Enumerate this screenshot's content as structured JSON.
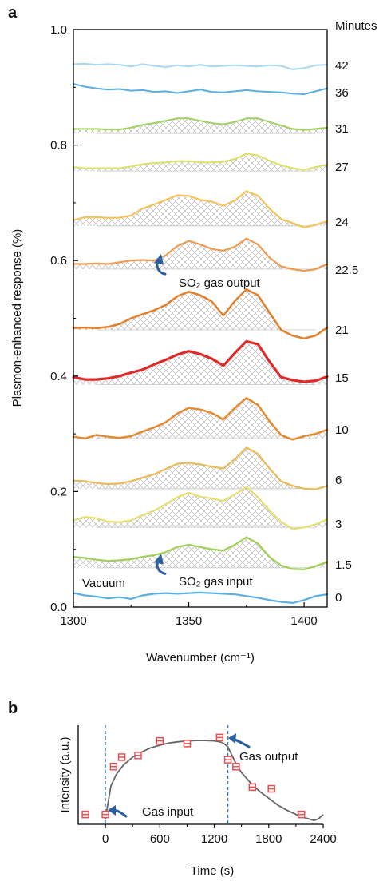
{
  "panel_labels": {
    "a": "a",
    "b": "b"
  },
  "chart_data": [
    {
      "type": "line",
      "panel": "a",
      "xlabel": "Wavenumber (cm⁻¹)",
      "ylabel": "Plasmon-enhanced response (%)",
      "xlim": [
        1300,
        1410
      ],
      "ylim": [
        0.0,
        1.0
      ],
      "xticks": [
        "1300",
        "1350",
        "1400"
      ],
      "yticks": [
        "0.0",
        "0.2",
        "0.4",
        "0.6",
        "0.8",
        "1.0"
      ],
      "legend_title": "Minutes",
      "x": [
        1300,
        1305,
        1310,
        1315,
        1320,
        1325,
        1330,
        1335,
        1340,
        1345,
        1350,
        1355,
        1360,
        1365,
        1370,
        1375,
        1380,
        1385,
        1390,
        1395,
        1400,
        1405,
        1410
      ],
      "series": [
        {
          "name": "42",
          "color": "#aad8ef",
          "width": 2,
          "hatch": false,
          "baseline": 0.94,
          "values": [
            0.94,
            0.941,
            0.939,
            0.94,
            0.939,
            0.936,
            0.94,
            0.937,
            0.935,
            0.938,
            0.936,
            0.939,
            0.936,
            0.937,
            0.938,
            0.937,
            0.936,
            0.938,
            0.937,
            0.931,
            0.933,
            0.938,
            0.939
          ]
        },
        {
          "name": "36",
          "color": "#5aaee2",
          "width": 2,
          "hatch": false,
          "baseline": 0.9,
          "values": [
            0.906,
            0.901,
            0.898,
            0.896,
            0.897,
            0.894,
            0.895,
            0.892,
            0.893,
            0.89,
            0.893,
            0.896,
            0.892,
            0.891,
            0.893,
            0.895,
            0.893,
            0.892,
            0.891,
            0.889,
            0.888,
            0.893,
            0.898
          ]
        },
        {
          "name": "31",
          "color": "#9fd060",
          "width": 2,
          "hatch": true,
          "baseline": 0.82,
          "values": [
            0.828,
            0.828,
            0.828,
            0.827,
            0.827,
            0.83,
            0.835,
            0.838,
            0.842,
            0.846,
            0.846,
            0.842,
            0.838,
            0.836,
            0.84,
            0.846,
            0.846,
            0.84,
            0.834,
            0.828,
            0.826,
            0.828,
            0.83
          ]
        },
        {
          "name": "27",
          "color": "#dde060",
          "width": 2,
          "hatch": true,
          "baseline": 0.755,
          "values": [
            0.762,
            0.76,
            0.76,
            0.76,
            0.76,
            0.763,
            0.767,
            0.769,
            0.77,
            0.772,
            0.772,
            0.77,
            0.77,
            0.771,
            0.776,
            0.785,
            0.782,
            0.773,
            0.765,
            0.76,
            0.757,
            0.762,
            0.766
          ]
        },
        {
          "name": "24",
          "color": "#f2c45a",
          "width": 2.2,
          "hatch": true,
          "baseline": 0.66,
          "values": [
            0.67,
            0.675,
            0.675,
            0.674,
            0.674,
            0.678,
            0.69,
            0.697,
            0.705,
            0.713,
            0.712,
            0.705,
            0.702,
            0.695,
            0.704,
            0.72,
            0.712,
            0.69,
            0.672,
            0.665,
            0.657,
            0.662,
            0.668
          ]
        },
        {
          "name": "22.5",
          "color": "#ee9c52",
          "width": 2.2,
          "hatch": true,
          "baseline": 0.585,
          "values": [
            0.594,
            0.594,
            0.595,
            0.594,
            0.597,
            0.6,
            0.601,
            0.6,
            0.609,
            0.625,
            0.634,
            0.628,
            0.62,
            0.617,
            0.624,
            0.638,
            0.628,
            0.605,
            0.59,
            0.585,
            0.582,
            0.585,
            0.594
          ]
        },
        {
          "name": "21",
          "color": "#e4802b",
          "width": 2.5,
          "hatch": true,
          "baseline": 0.48,
          "values": [
            0.483,
            0.484,
            0.483,
            0.485,
            0.49,
            0.5,
            0.507,
            0.514,
            0.523,
            0.538,
            0.546,
            0.54,
            0.529,
            0.505,
            0.53,
            0.55,
            0.54,
            0.51,
            0.48,
            0.47,
            0.465,
            0.47,
            0.484
          ]
        },
        {
          "name": "15",
          "color": "#e02a2a",
          "width": 3.2,
          "hatch": true,
          "baseline": 0.385,
          "values": [
            0.398,
            0.394,
            0.394,
            0.396,
            0.4,
            0.406,
            0.411,
            0.42,
            0.428,
            0.437,
            0.443,
            0.438,
            0.43,
            0.418,
            0.44,
            0.46,
            0.455,
            0.425,
            0.398,
            0.393,
            0.39,
            0.392,
            0.399
          ]
        },
        {
          "name": "10",
          "color": "#e48a30",
          "width": 2.5,
          "hatch": true,
          "baseline": 0.292,
          "values": [
            0.295,
            0.292,
            0.298,
            0.295,
            0.293,
            0.296,
            0.304,
            0.311,
            0.32,
            0.335,
            0.345,
            0.342,
            0.336,
            0.325,
            0.345,
            0.362,
            0.35,
            0.322,
            0.298,
            0.29,
            0.296,
            0.3,
            0.307
          ]
        },
        {
          "name": "6",
          "color": "#e8bb55",
          "width": 2.2,
          "hatch": true,
          "baseline": 0.205,
          "values": [
            0.219,
            0.218,
            0.215,
            0.213,
            0.214,
            0.218,
            0.224,
            0.23,
            0.239,
            0.248,
            0.25,
            0.247,
            0.243,
            0.24,
            0.256,
            0.276,
            0.265,
            0.24,
            0.218,
            0.21,
            0.205,
            0.204,
            0.21
          ]
        },
        {
          "name": "3",
          "color": "#e5e070",
          "width": 2.2,
          "hatch": true,
          "baseline": 0.138,
          "values": [
            0.15,
            0.156,
            0.154,
            0.148,
            0.147,
            0.15,
            0.159,
            0.167,
            0.178,
            0.19,
            0.198,
            0.191,
            0.188,
            0.184,
            0.195,
            0.208,
            0.19,
            0.167,
            0.148,
            0.135,
            0.138,
            0.143,
            0.152
          ]
        },
        {
          "name": "1.5",
          "color": "#a2cf58",
          "width": 2.2,
          "hatch": true,
          "baseline": 0.068,
          "values": [
            0.087,
            0.085,
            0.082,
            0.08,
            0.081,
            0.083,
            0.087,
            0.09,
            0.095,
            0.104,
            0.108,
            0.104,
            0.1,
            0.098,
            0.108,
            0.121,
            0.11,
            0.087,
            0.072,
            0.066,
            0.065,
            0.071,
            0.078
          ]
        },
        {
          "name": "0",
          "color": "#5ab0e2",
          "width": 2.2,
          "hatch": false,
          "baseline": 0.02,
          "values": [
            0.024,
            0.02,
            0.018,
            0.015,
            0.017,
            0.014,
            0.02,
            0.023,
            0.024,
            0.023,
            0.024,
            0.025,
            0.024,
            0.023,
            0.022,
            0.019,
            0.016,
            0.012,
            0.009,
            0.007,
            0.012,
            0.019,
            0.022
          ]
        }
      ],
      "annotations": [
        {
          "text": "SO₂ gas output",
          "arrow_x": 1337,
          "arrow_y": 0.607
        },
        {
          "text": "SO₂ gas input",
          "arrow_x": 1337,
          "arrow_y": 0.088
        },
        {
          "text": "Vacuum"
        }
      ]
    },
    {
      "type": "scatter",
      "panel": "b",
      "xlabel": "Time (s)",
      "ylabel": "Intensity (a.u.)",
      "xlim": [
        -300,
        2400
      ],
      "xticks": [
        "0",
        "600",
        "1200",
        "1800",
        "2400"
      ],
      "ylim": [
        0,
        1
      ],
      "points": {
        "x": [
          -220,
          0,
          90,
          180,
          360,
          600,
          900,
          1260,
          1350,
          1440,
          1620,
          1830,
          2160
        ],
        "y": [
          0.05,
          0.05,
          0.61,
          0.72,
          0.74,
          0.91,
          0.88,
          0.95,
          0.69,
          0.61,
          0.37,
          0.35,
          0.05
        ]
      },
      "fit": {
        "x": [
          0,
          60,
          120,
          200,
          300,
          400,
          500,
          600,
          700,
          800,
          900,
          1000,
          1100,
          1200,
          1260,
          1300,
          1350,
          1400,
          1450,
          1500,
          1600,
          1700,
          1800,
          1900,
          2000,
          2100,
          2200,
          2300,
          2350,
          2400
        ],
        "y": [
          0.0,
          0.38,
          0.52,
          0.63,
          0.72,
          0.78,
          0.83,
          0.86,
          0.885,
          0.9,
          0.91,
          0.915,
          0.915,
          0.91,
          0.9,
          0.885,
          0.84,
          0.73,
          0.62,
          0.54,
          0.42,
          0.32,
          0.24,
          0.16,
          0.1,
          0.05,
          0.01,
          -0.02,
          0.0,
          0.05
        ]
      },
      "vlines": [
        0,
        1350
      ],
      "annotations": [
        {
          "text": "Gas output",
          "arrow_x": 1400,
          "arrow_y": 0.92
        },
        {
          "text": "Gas input",
          "arrow_x": 60,
          "arrow_y": 0.06
        }
      ]
    }
  ]
}
